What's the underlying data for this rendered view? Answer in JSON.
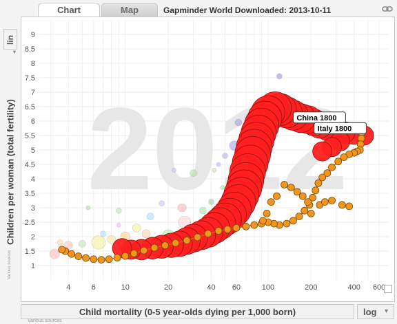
{
  "tabs": {
    "chart": "Chart",
    "map": "Map"
  },
  "title": "Gapminder World Downloaded: 2013-10-11",
  "watermark": "2012",
  "yaxis": {
    "label": "Children per woman (total fertility)",
    "scale": "lin",
    "source": "Various sources"
  },
  "xaxis": {
    "label": "Child mortality (0-5 year-olds dying per 1,000 born)",
    "scale": "log",
    "source": "Various sources"
  },
  "chart_data": {
    "type": "scatter",
    "x_scale": "log",
    "y_scale": "linear",
    "xlim": [
      2.5,
      700
    ],
    "ylim": [
      0.5,
      9.5
    ],
    "x_ticks": [
      4,
      6,
      10,
      20,
      40,
      60,
      100,
      200,
      400,
      600
    ],
    "x_tick_labels": [
      "4",
      "6",
      "10",
      "20",
      "40",
      "60",
      "100",
      "200",
      "400",
      "600"
    ],
    "y_ticks": [
      1,
      1.5,
      2,
      2.5,
      3,
      3.5,
      4,
      4.5,
      5,
      5.5,
      6,
      6.5,
      7,
      7.5,
      8,
      8.5,
      9
    ],
    "y_tick_labels": [
      "1",
      "1.5",
      "2",
      "2.5",
      "3",
      "3.5",
      "4",
      "4.5",
      "5",
      "5.5",
      "6",
      "6.5",
      "7",
      "7.5",
      "8",
      "8.5",
      "9"
    ],
    "annotations": [
      {
        "text": "China 1800",
        "x": 150,
        "y": 6.1
      },
      {
        "text": "Italy 1800",
        "x": 210,
        "y": 5.73
      }
    ],
    "colors": {
      "china_trail": "#ff2020",
      "italy_trail": "#f0961e",
      "background_countries": "mixed"
    },
    "series": [
      {
        "color": "#ff2020",
        "points": [
          [
            470,
            5.5
          ],
          [
            400,
            5.55
          ],
          [
            340,
            5.6
          ],
          [
            300,
            5.65
          ],
          [
            260,
            5.75
          ],
          [
            230,
            5.85
          ],
          [
            210,
            5.95
          ],
          [
            190,
            6.05
          ],
          [
            170,
            6.1
          ],
          [
            150,
            6.2
          ],
          [
            135,
            6.3
          ],
          [
            122,
            6.4
          ],
          [
            112,
            6.45
          ],
          [
            100,
            6.3
          ],
          [
            95,
            6.1
          ],
          [
            90,
            5.85
          ],
          [
            86,
            5.6
          ],
          [
            83,
            5.35
          ],
          [
            80,
            5.1
          ],
          [
            78,
            4.85
          ],
          [
            75,
            4.55
          ],
          [
            72,
            4.25
          ],
          [
            70,
            3.95
          ],
          [
            68,
            3.7
          ],
          [
            65,
            3.45
          ],
          [
            62,
            3.2
          ],
          [
            58,
            2.95
          ],
          [
            54,
            2.75
          ],
          [
            50,
            2.6
          ],
          [
            46,
            2.45
          ],
          [
            42,
            2.3
          ],
          [
            38,
            2.15
          ],
          [
            34,
            2.05
          ],
          [
            30,
            1.95
          ],
          [
            27,
            1.85
          ],
          [
            24,
            1.75
          ],
          [
            21,
            1.7
          ],
          [
            18,
            1.65
          ],
          [
            15.5,
            1.6
          ],
          [
            13,
            1.55
          ],
          [
            11,
            1.55
          ],
          [
            9.5,
            1.6
          ],
          [
            320,
            5.3
          ],
          [
            280,
            5.1
          ],
          [
            240,
            4.95
          ]
        ]
      },
      {
        "color": "#f0961e",
        "points": [
          [
            460,
            5.8
          ],
          [
            455,
            5.6
          ],
          [
            450,
            5.4
          ],
          [
            445,
            5.2
          ],
          [
            440,
            5.0
          ],
          [
            420,
            4.95
          ],
          [
            400,
            4.9
          ],
          [
            370,
            4.85
          ],
          [
            340,
            4.75
          ],
          [
            310,
            4.6
          ],
          [
            280,
            4.4
          ],
          [
            260,
            4.2
          ],
          [
            240,
            4.05
          ],
          [
            225,
            3.85
          ],
          [
            215,
            3.6
          ],
          [
            205,
            3.35
          ],
          [
            195,
            3.1
          ],
          [
            180,
            2.9
          ],
          [
            165,
            2.7
          ],
          [
            150,
            2.55
          ],
          [
            135,
            2.45
          ],
          [
            120,
            2.4
          ],
          [
            110,
            2.45
          ],
          [
            100,
            2.5
          ],
          [
            90,
            2.45
          ],
          [
            80,
            2.4
          ],
          [
            70,
            2.35
          ],
          [
            60,
            2.3
          ],
          [
            52,
            2.25
          ],
          [
            45,
            2.2
          ],
          [
            38,
            2.1
          ],
          [
            32,
            1.98
          ],
          [
            27,
            1.87
          ],
          [
            22.5,
            1.78
          ],
          [
            19,
            1.7
          ],
          [
            16,
            1.62
          ],
          [
            13.5,
            1.52
          ],
          [
            11.5,
            1.42
          ],
          [
            10,
            1.33
          ],
          [
            8.8,
            1.27
          ],
          [
            7.7,
            1.22
          ],
          [
            6.8,
            1.2
          ],
          [
            6,
            1.22
          ],
          [
            5.3,
            1.26
          ],
          [
            4.7,
            1.32
          ],
          [
            4.2,
            1.4
          ],
          [
            3.8,
            1.5
          ],
          [
            3.6,
            1.55
          ],
          [
            230,
            3.1
          ],
          [
            250,
            3.2
          ],
          [
            280,
            3.25
          ],
          [
            330,
            3.1
          ],
          [
            370,
            3.05
          ],
          [
            200,
            2.8
          ],
          [
            190,
            3.2
          ],
          [
            175,
            3.4
          ],
          [
            160,
            3.55
          ],
          [
            145,
            3.7
          ],
          [
            130,
            3.8
          ],
          [
            115,
            3.4
          ],
          [
            105,
            3.2
          ],
          [
            98,
            2.8
          ],
          [
            92,
            2.55
          ]
        ]
      }
    ]
  }
}
